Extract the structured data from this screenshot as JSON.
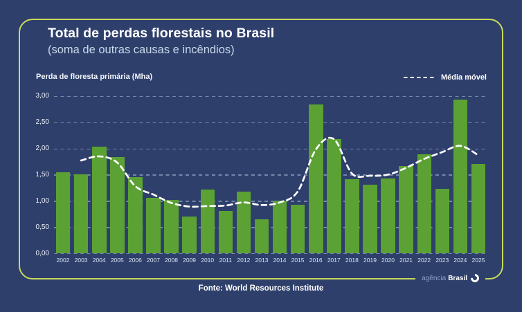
{
  "colors": {
    "background": "#2e3f6b",
    "card_border": "#c9db5c",
    "bar_green": "#5ba133",
    "subtitle_blue": "#c9d9ec",
    "line_white": "#ffffff"
  },
  "header": {
    "title": "Total de perdas florestais no Brasil",
    "subtitle": "(soma de outras causas e incêndios)"
  },
  "chart_data": {
    "type": "bar",
    "title": "Total de perdas florestais no Brasil (soma de outras causas e incêndios)",
    "ylabel": "Perda de floresta primária (Mha)",
    "xlabel": "",
    "ylim": [
      0,
      3
    ],
    "grid": true,
    "legend_label": "Média móvel",
    "legend_position": "top-right",
    "y_ticks": [
      {
        "label": "0,00",
        "value": 0
      },
      {
        "label": "0,50",
        "value": 0.5
      },
      {
        "label": "1,00",
        "value": 1
      },
      {
        "label": "1,50",
        "value": 1.5
      },
      {
        "label": "2,00",
        "value": 2
      },
      {
        "label": "2,50",
        "value": 2.5
      },
      {
        "label": "3,00",
        "value": 3
      }
    ],
    "categories": [
      "2002",
      "2003",
      "2004",
      "2005",
      "2006",
      "2007",
      "2008",
      "2009",
      "2010",
      "2011",
      "2012",
      "2013",
      "2014",
      "2015",
      "2016",
      "2017",
      "2018",
      "2019",
      "2020",
      "2021",
      "2022",
      "2023",
      "2024",
      "2025"
    ],
    "series": [
      {
        "name": "Perda de floresta primária (Mha)",
        "type": "bar",
        "color": "#5ba133",
        "values": [
          1.55,
          1.5,
          2.04,
          1.84,
          1.45,
          1.06,
          1.02,
          0.7,
          1.22,
          0.8,
          1.18,
          0.65,
          1.0,
          0.92,
          2.84,
          2.18,
          1.41,
          1.31,
          1.43,
          1.66,
          1.89,
          1.23,
          2.93,
          1.71
        ]
      },
      {
        "name": "Média móvel",
        "type": "line",
        "style": "dashed",
        "color": "#ffffff",
        "start_category": "2003",
        "values": [
          1.77,
          1.85,
          1.73,
          1.28,
          1.12,
          0.96,
          0.89,
          0.9,
          0.91,
          0.97,
          0.92,
          0.97,
          1.18,
          1.98,
          2.18,
          1.52,
          1.48,
          1.5,
          1.63,
          1.8,
          1.93,
          2.05,
          1.87
        ]
      }
    ]
  },
  "footer": {
    "source_label": "Fonte:",
    "source_name": "World Resources Institute"
  },
  "logo": {
    "prefix": "agência",
    "suffix": "Brasil"
  }
}
